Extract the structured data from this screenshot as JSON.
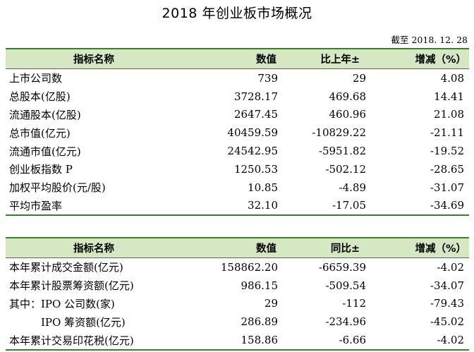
{
  "title": "2018 年创业板市场概况",
  "date": "截至 2018. 12. 28",
  "colors": {
    "header_bg": "#d6e8c3",
    "rule": "#3a7d2c"
  },
  "table1": {
    "headers": [
      "指标名称",
      "数值",
      "比上年±",
      "增减（%）"
    ],
    "rows": [
      [
        "上市公司数",
        "739",
        "29",
        "4.08"
      ],
      [
        "总股本(亿股)",
        "3728.17",
        "469.68",
        "14.41"
      ],
      [
        "流通股本(亿股)",
        "2647.45",
        "460.96",
        "21.08"
      ],
      [
        "总市值(亿元)",
        "40459.59",
        "-10829.22",
        "-21.11"
      ],
      [
        "流通市值(亿元)",
        "24542.95",
        "-5951.82",
        "-19.52"
      ],
      [
        "创业板指数 P",
        "1250.53",
        "-502.12",
        "-28.65"
      ],
      [
        "加权平均股价(元/股)",
        "10.85",
        "-4.89",
        "-31.07"
      ],
      [
        "平均市盈率",
        "32.10",
        "-17.05",
        "-34.69"
      ]
    ]
  },
  "table2": {
    "headers": [
      "指标名称",
      "数值",
      "同比±",
      "增减（%）"
    ],
    "rows": [
      [
        "本年累计成交金额(亿元)",
        "158862.20",
        "-6659.39",
        "-4.02"
      ],
      [
        "本年累计股票筹资额(亿元)",
        "986.15",
        "-509.54",
        "-34.07"
      ],
      [
        "其中：IPO 公司数(家)",
        "29",
        "-112",
        "-79.43"
      ],
      [
        "　　　IPO 筹资额(亿元)",
        "286.89",
        "-234.96",
        "-45.02"
      ],
      [
        "本年累计交易印花税(亿元)",
        "158.86",
        "-6.66",
        "-4.02"
      ]
    ]
  }
}
